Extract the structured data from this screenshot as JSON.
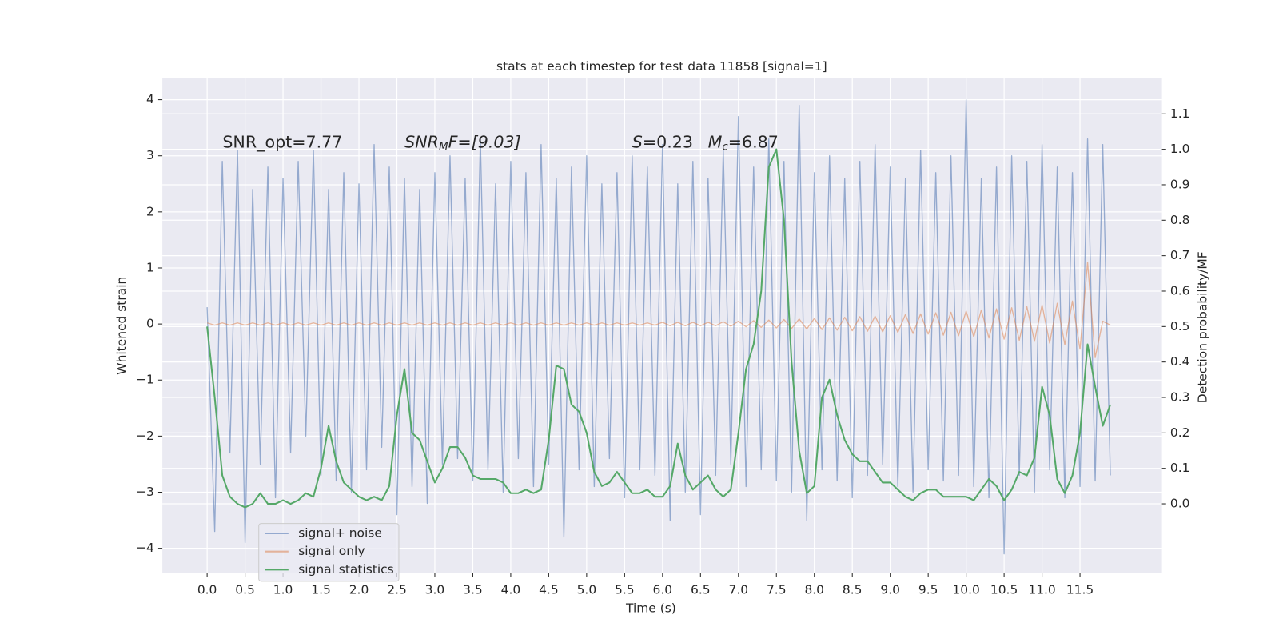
{
  "chart_data": {
    "type": "line",
    "title": "stats at each timestep for test data 11858 [signal=1]",
    "xlabel": "Time (s)",
    "ylabel": "Whitened strain",
    "y2label": "Detection probability/MF",
    "annotations": {
      "snr_opt": "SNR_opt=7.77",
      "snr_mf": {
        "base": "SNR",
        "sub": "M",
        "rest": "F=[9.03]"
      },
      "s": {
        "base": "S",
        "rest": "=0.23"
      },
      "mc": {
        "base": "M",
        "sub": "c",
        "rest": "=6.87"
      }
    },
    "xlim": [
      -0.59,
      12.58
    ],
    "ylim": [
      -4.44,
      4.38
    ],
    "y2lim": [
      -0.195,
      1.2
    ],
    "xticks": [
      {
        "value": 0,
        "label": "0.0"
      },
      {
        "value": 0.5,
        "label": "0.5"
      },
      {
        "value": 1,
        "label": "1.0"
      },
      {
        "value": 1.5,
        "label": "1.5"
      },
      {
        "value": 2,
        "label": "2.0"
      },
      {
        "value": 2.5,
        "label": "2.5"
      },
      {
        "value": 3,
        "label": "3.0"
      },
      {
        "value": 3.5,
        "label": "3.5"
      },
      {
        "value": 4,
        "label": "4.0"
      },
      {
        "value": 4.5,
        "label": "4.5"
      },
      {
        "value": 5,
        "label": "5.0"
      },
      {
        "value": 5.5,
        "label": "5.5"
      },
      {
        "value": 6,
        "label": "6.0"
      },
      {
        "value": 6.5,
        "label": "6.5"
      },
      {
        "value": 7,
        "label": "7.0"
      },
      {
        "value": 7.5,
        "label": "7.5"
      },
      {
        "value": 8,
        "label": "8.0"
      },
      {
        "value": 8.5,
        "label": "8.5"
      },
      {
        "value": 9,
        "label": "9.0"
      },
      {
        "value": 9.5,
        "label": "9.5"
      },
      {
        "value": 10,
        "label": "10.0"
      },
      {
        "value": 10.5,
        "label": "10.5"
      },
      {
        "value": 11,
        "label": "11.0"
      },
      {
        "value": 11.5,
        "label": "11.5"
      }
    ],
    "yticks": [
      {
        "value": -4,
        "label": "−4"
      },
      {
        "value": -3,
        "label": "−3"
      },
      {
        "value": -2,
        "label": "−2"
      },
      {
        "value": -1,
        "label": "−1"
      },
      0,
      1,
      2,
      3,
      4
    ],
    "y2ticks": [
      {
        "value": 0,
        "label": "0.0"
      },
      {
        "value": 0.1,
        "label": "0.1"
      },
      {
        "value": 0.2,
        "label": "0.2"
      },
      {
        "value": 0.3,
        "label": "0.3"
      },
      {
        "value": 0.4,
        "label": "0.4"
      },
      {
        "value": 0.5,
        "label": "0.5"
      },
      {
        "value": 0.6,
        "label": "0.6"
      },
      {
        "value": 0.7,
        "label": "0.7"
      },
      {
        "value": 0.8,
        "label": "0.8"
      },
      {
        "value": 0.9,
        "label": "0.9"
      },
      {
        "value": 1,
        "label": "1.0"
      },
      {
        "value": 1.1,
        "label": "1.1"
      }
    ],
    "grid": true,
    "legend": "lower left",
    "x": [
      0,
      0.1,
      0.2,
      0.3,
      0.4,
      0.5,
      0.6,
      0.7,
      0.8,
      0.9,
      1,
      1.1,
      1.2,
      1.3,
      1.4,
      1.5,
      1.6,
      1.7,
      1.8,
      1.9,
      2,
      2.1,
      2.2,
      2.3,
      2.4,
      2.5,
      2.6,
      2.7,
      2.8,
      2.9,
      3,
      3.1,
      3.2,
      3.3,
      3.4,
      3.5,
      3.6,
      3.7,
      3.8,
      3.9,
      4,
      4.1,
      4.2,
      4.3,
      4.4,
      4.5,
      4.6,
      4.7,
      4.8,
      4.9,
      5,
      5.1,
      5.2,
      5.3,
      5.4,
      5.5,
      5.6,
      5.7,
      5.8,
      5.9,
      6,
      6.1,
      6.2,
      6.3,
      6.4,
      6.5,
      6.6,
      6.7,
      6.8,
      6.9,
      7,
      7.1,
      7.2,
      7.3,
      7.4,
      7.5,
      7.6,
      7.7,
      7.8,
      7.9,
      8,
      8.1,
      8.2,
      8.3,
      8.4,
      8.5,
      8.6,
      8.7,
      8.8,
      8.9,
      9,
      9.1,
      9.2,
      9.3,
      9.4,
      9.5,
      9.6,
      9.7,
      9.8,
      9.9,
      10,
      10.1,
      10.2,
      10.3,
      10.4,
      10.5,
      10.6,
      10.7,
      10.8,
      10.9,
      11,
      11.1,
      11.2,
      11.3,
      11.4,
      11.5,
      11.6,
      11.7,
      11.8,
      11.9
    ],
    "series": [
      {
        "name": "signal+ noise",
        "color": "#4c72b0",
        "axis": "y",
        "values": [
          0.3,
          -3.7,
          2.9,
          -2.3,
          3.1,
          -3.9,
          2.4,
          -2.5,
          2.8,
          -3.1,
          2.6,
          -2.3,
          2.9,
          -2.0,
          3.1,
          -2.7,
          2.4,
          -2.8,
          2.7,
          -3.0,
          2.5,
          -2.6,
          3.2,
          -2.2,
          2.8,
          -3.4,
          2.6,
          -2.9,
          2.4,
          -3.2,
          2.7,
          -2.5,
          3.0,
          -2.4,
          2.6,
          -2.8,
          3.3,
          -2.6,
          2.5,
          -3.0,
          2.9,
          -2.4,
          2.7,
          -2.9,
          3.2,
          -2.5,
          2.6,
          -3.8,
          2.8,
          -2.6,
          3.0,
          -2.9,
          2.5,
          -2.4,
          2.7,
          -3.1,
          3.0,
          -2.6,
          2.8,
          -2.7,
          3.2,
          -3.5,
          2.5,
          -3.0,
          2.9,
          -3.4,
          2.6,
          -2.7,
          3.1,
          -2.5,
          3.7,
          -2.9,
          2.8,
          -2.6,
          3.3,
          -2.8,
          2.9,
          -3.0,
          3.9,
          -3.5,
          2.7,
          -2.6,
          3.0,
          -2.8,
          2.6,
          -3.1,
          2.9,
          -2.7,
          3.2,
          -2.5,
          2.8,
          -2.9,
          2.6,
          -3.0,
          3.1,
          -2.6,
          2.7,
          -2.8,
          3.0,
          -2.7,
          4.0,
          -2.9,
          2.6,
          -3.1,
          2.8,
          -4.1,
          3.0,
          -2.7,
          2.9,
          -3.0,
          3.2,
          -2.6,
          2.8,
          -3.1,
          2.7,
          -2.9,
          3.3,
          -2.8,
          3.2,
          -2.7
        ]
      },
      {
        "name": "signal only",
        "color": "#dd8452",
        "axis": "y",
        "values": [
          0.02,
          -0.02,
          0.02,
          -0.02,
          0.02,
          -0.02,
          0.02,
          -0.02,
          0.02,
          -0.02,
          0.02,
          -0.02,
          0.02,
          -0.02,
          0.02,
          -0.02,
          0.02,
          -0.02,
          0.02,
          -0.02,
          0.02,
          -0.02,
          0.02,
          -0.02,
          0.02,
          -0.02,
          0.02,
          -0.02,
          0.02,
          -0.02,
          0.02,
          -0.02,
          0.02,
          -0.02,
          0.02,
          -0.02,
          0.02,
          -0.02,
          0.02,
          -0.02,
          0.02,
          -0.02,
          0.02,
          -0.02,
          0.02,
          -0.02,
          0.02,
          -0.02,
          0.02,
          -0.02,
          0.02,
          -0.02,
          0.02,
          -0.02,
          0.02,
          -0.02,
          0.02,
          -0.02,
          0.02,
          -0.02,
          0.03,
          -0.03,
          0.03,
          -0.03,
          0.03,
          -0.03,
          0.03,
          -0.03,
          0.04,
          -0.04,
          0.05,
          -0.05,
          0.06,
          -0.06,
          0.07,
          -0.07,
          0.08,
          -0.08,
          0.09,
          -0.09,
          0.1,
          -0.1,
          0.11,
          -0.11,
          0.12,
          -0.12,
          0.13,
          -0.13,
          0.14,
          -0.14,
          0.15,
          -0.15,
          0.17,
          -0.17,
          0.18,
          -0.18,
          0.2,
          -0.2,
          0.21,
          -0.21,
          0.23,
          -0.23,
          0.25,
          -0.25,
          0.27,
          -0.27,
          0.29,
          -0.29,
          0.31,
          -0.31,
          0.34,
          -0.34,
          0.37,
          -0.37,
          0.41,
          -0.45,
          1.1,
          -0.6,
          0.05,
          -0.02
        ]
      },
      {
        "name": "signal statistics",
        "color": "#55a868",
        "axis": "y2",
        "values": [
          0.5,
          0.3,
          0.08,
          0.02,
          0.0,
          -0.01,
          0.0,
          0.03,
          0.0,
          0.0,
          0.01,
          0.0,
          0.01,
          0.03,
          0.02,
          0.1,
          0.22,
          0.12,
          0.06,
          0.04,
          0.02,
          0.01,
          0.02,
          0.01,
          0.05,
          0.25,
          0.38,
          0.2,
          0.18,
          0.12,
          0.06,
          0.1,
          0.16,
          0.16,
          0.13,
          0.08,
          0.07,
          0.07,
          0.07,
          0.06,
          0.03,
          0.03,
          0.04,
          0.03,
          0.04,
          0.18,
          0.39,
          0.38,
          0.28,
          0.26,
          0.2,
          0.09,
          0.05,
          0.06,
          0.09,
          0.06,
          0.03,
          0.03,
          0.04,
          0.02,
          0.02,
          0.05,
          0.17,
          0.08,
          0.04,
          0.06,
          0.08,
          0.04,
          0.02,
          0.04,
          0.2,
          0.38,
          0.45,
          0.6,
          0.95,
          1.0,
          0.8,
          0.4,
          0.15,
          0.03,
          0.05,
          0.3,
          0.35,
          0.25,
          0.18,
          0.14,
          0.12,
          0.12,
          0.09,
          0.06,
          0.06,
          0.04,
          0.02,
          0.01,
          0.03,
          0.04,
          0.04,
          0.02,
          0.02,
          0.02,
          0.02,
          0.01,
          0.04,
          0.07,
          0.05,
          0.01,
          0.04,
          0.09,
          0.08,
          0.13,
          0.33,
          0.25,
          0.07,
          0.03,
          0.08,
          0.2,
          0.45,
          0.33,
          0.22,
          0.28
        ]
      }
    ]
  }
}
